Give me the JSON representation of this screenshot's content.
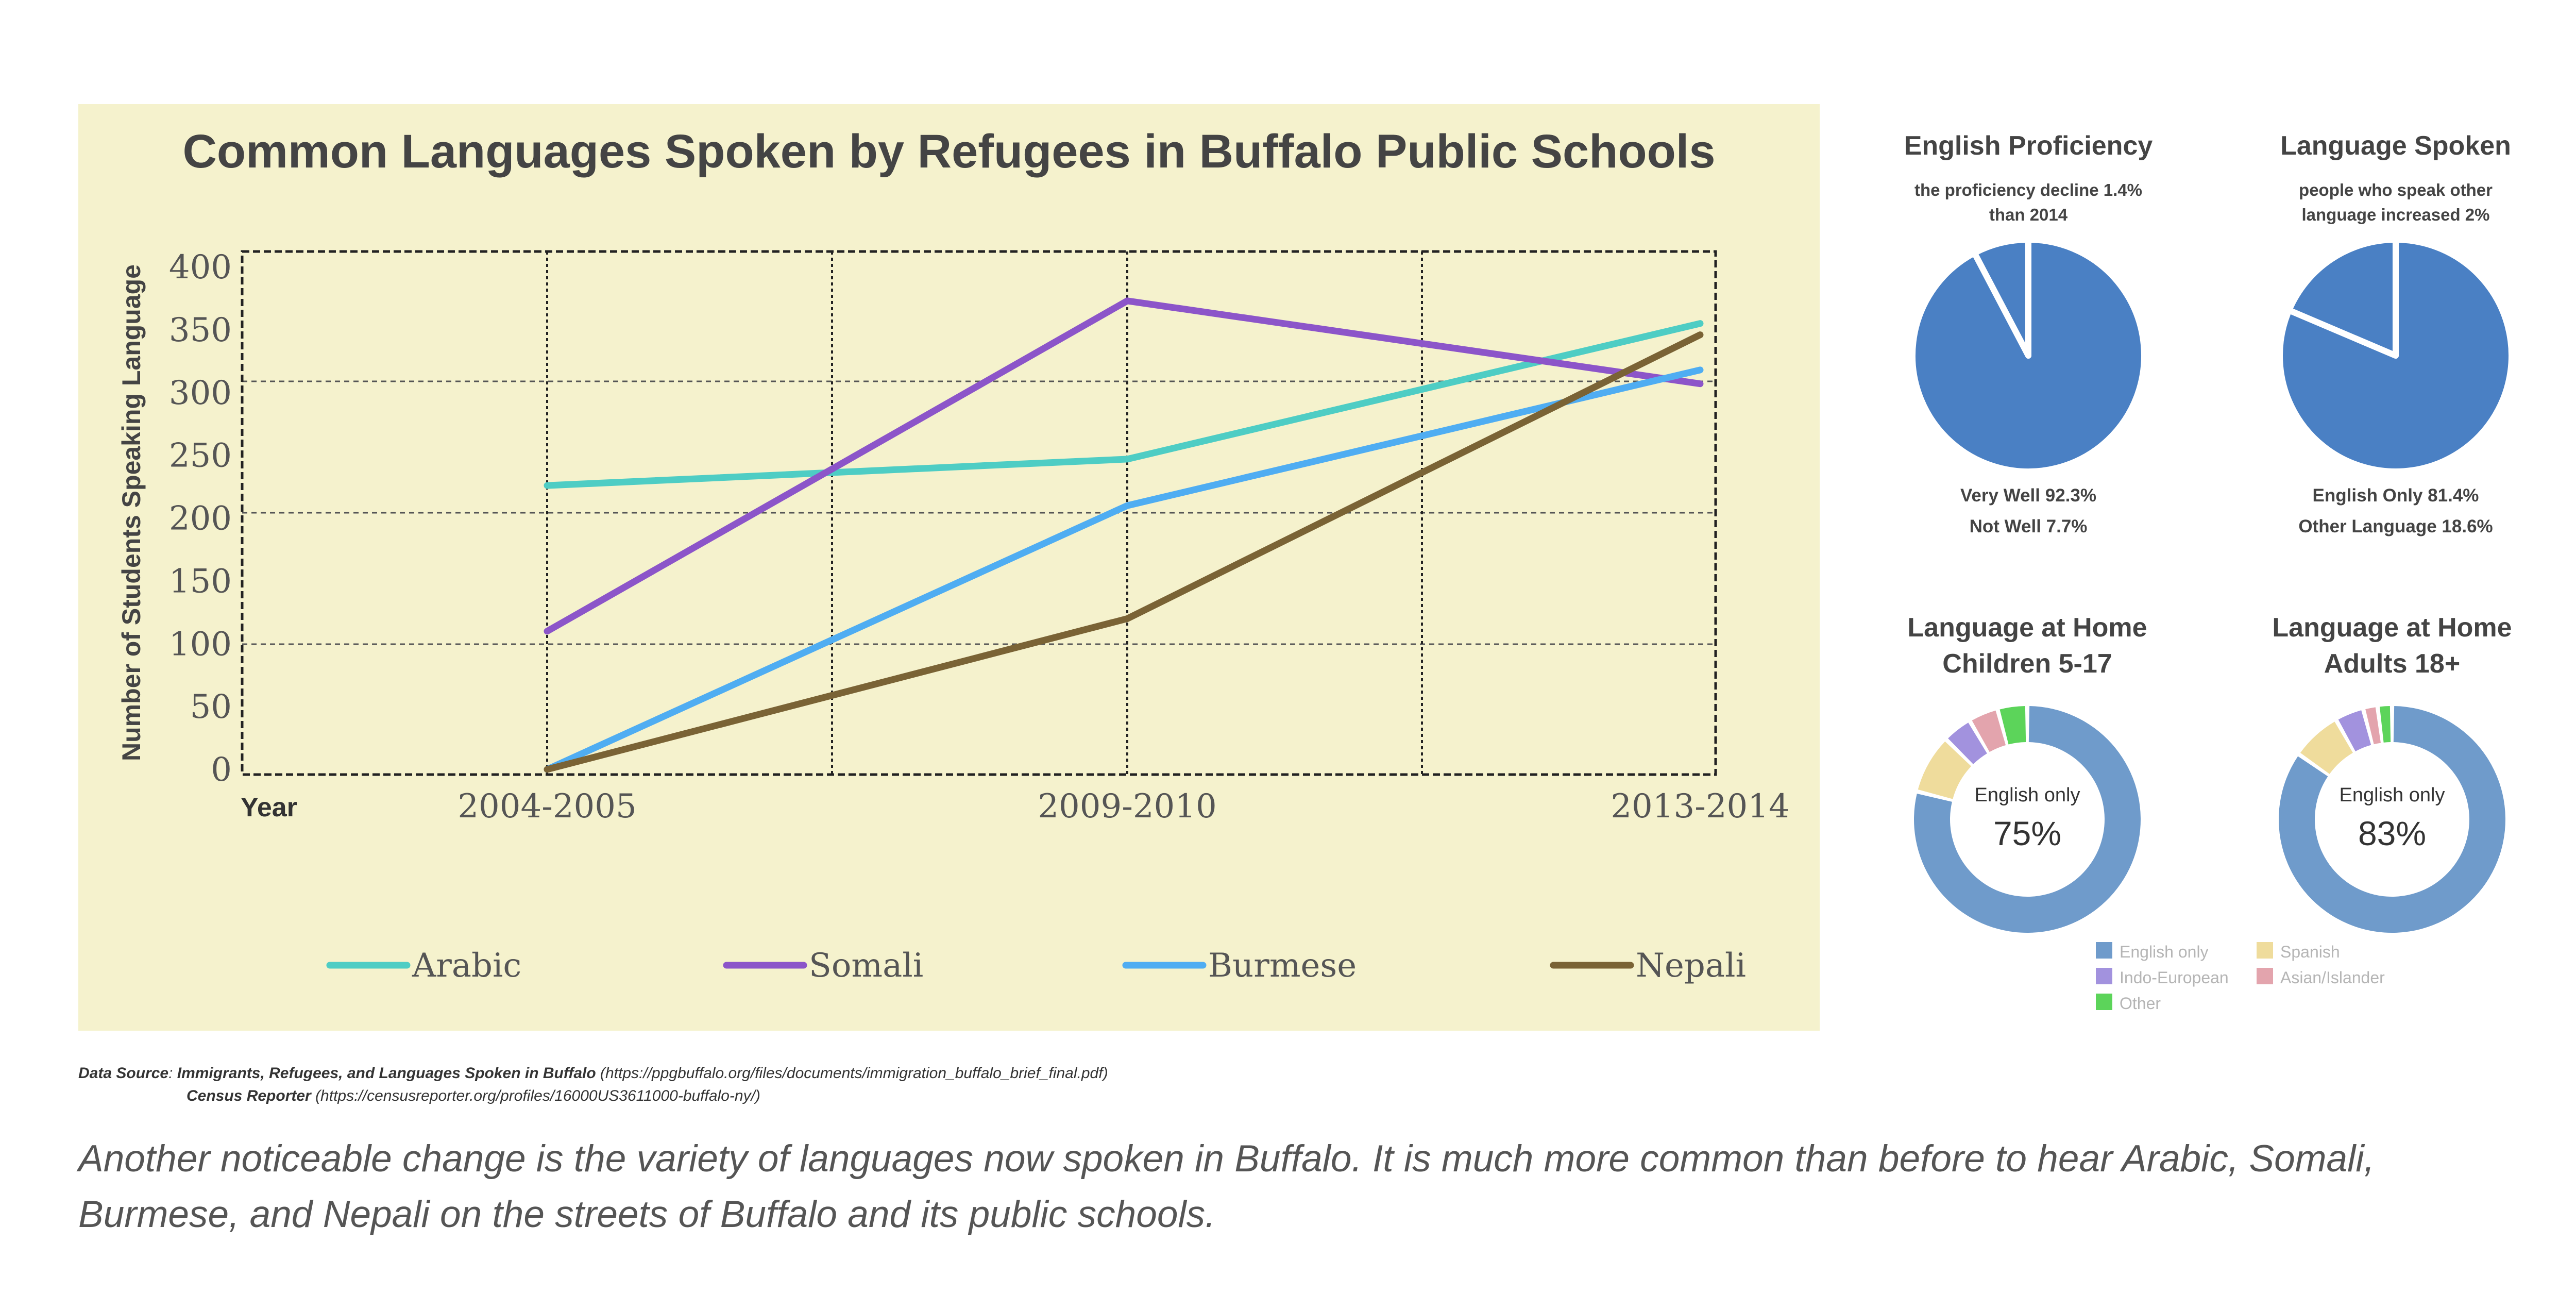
{
  "colors": {
    "panel_bg": "#f5f2cd",
    "arabic": "#4ecdc4",
    "somali": "#8c55c9",
    "burmese": "#4fadf2",
    "nepali": "#7a6335",
    "pie_blue": "#4a80c4",
    "donut_english": "#6f9bcb",
    "donut_indo": "#a292de",
    "donut_spanish": "#efdc9c",
    "donut_asian": "#e3a4ad",
    "donut_other": "#5cd45a"
  },
  "chart_data": [
    {
      "type": "line",
      "title": "Common Languages Spoken by Refugees in Buffalo Public Schools",
      "xlabel": "Year",
      "ylabel": "Number of Students Speaking Language",
      "categories": [
        "2004-2005",
        "2009-2010",
        "2013-2014"
      ],
      "ylim": [
        0,
        400
      ],
      "yticks": [
        0,
        50,
        100,
        150,
        200,
        250,
        300,
        350,
        400
      ],
      "grid": true,
      "legend_position": "bottom",
      "series": [
        {
          "name": "Arabic",
          "values": [
            226,
            247,
            355
          ]
        },
        {
          "name": "Somali",
          "values": [
            110,
            373,
            307
          ]
        },
        {
          "name": "Burmese",
          "values": [
            0,
            210,
            318
          ]
        },
        {
          "name": "Nepali",
          "values": [
            0,
            120,
            346
          ]
        }
      ]
    },
    {
      "type": "pie",
      "title": "English Proficiency",
      "subtitle": "the proficiency  decline 1.4% than 2014",
      "labels": [
        "Very Well",
        "Not Well"
      ],
      "values": [
        92.3,
        7.7
      ],
      "label_lines": [
        "Very Well 92.3%",
        "Not Well 7.7%"
      ]
    },
    {
      "type": "pie",
      "title": "Language Spoken",
      "subtitle": "people who speak other language increased 2%",
      "labels": [
        "English Only",
        "Other Language"
      ],
      "values": [
        81.4,
        18.6
      ],
      "label_lines": [
        "English Only 81.4%",
        "Other Language 18.6%"
      ]
    },
    {
      "type": "pie",
      "title": "Language at Home Children 5-17",
      "labels": [
        "English only",
        "Spanish",
        "Indo-European",
        "Asian/Islander",
        "Other"
      ],
      "values": [
        75,
        8,
        4,
        4,
        4
      ],
      "center_label": "English only",
      "center_value": "75%"
    },
    {
      "type": "pie",
      "title": "Language at Home Adults 18+",
      "labels": [
        "English only",
        "Spanish",
        "Indo-European",
        "Asian/Islander",
        "Other"
      ],
      "values": [
        83,
        7,
        4,
        2,
        2
      ],
      "center_label": "English only",
      "center_value": "83%"
    }
  ],
  "text": {
    "pie1_title": "English Proficiency",
    "pie1_sub1": "the proficiency  decline 1.4%",
    "pie1_sub2": "than 2014",
    "pie1_l1": "Very Well 92.3%",
    "pie1_l2": "Not Well 7.7%",
    "pie2_title": "Language Spoken",
    "pie2_sub1": "people who speak other",
    "pie2_sub2": "language increased 2%",
    "pie2_l1": "English Only 81.4%",
    "pie2_l2": "Other Language 18.6%",
    "donut1_title1": "Language at Home",
    "donut1_title2": "Children 5-17",
    "donut2_title1": "Language at Home",
    "donut2_title2": "Adults 18+",
    "donut_legend": [
      "English only",
      "Spanish",
      "Indo-European",
      "Asian/Islander",
      "Other"
    ]
  },
  "source": {
    "label": "Data Source",
    "line1_title": "Immigrants, Refugees, and Languages Spoken in Buffalo",
    "line1_url": " (https://ppgbuffalo.org/files/documents/immigration_buffalo_brief_final.pdf)",
    "line2_title": "Census Reporter",
    "line2_url": " (https://censusreporter.org/profiles/16000US3611000-buffalo-ny/)"
  },
  "caption": "Another noticeable change is the variety of languages now spoken in Buffalo. It is much more common than before to hear Arabic, Somali, Burmese, and Nepali on the streets of Buffalo and its public schools."
}
